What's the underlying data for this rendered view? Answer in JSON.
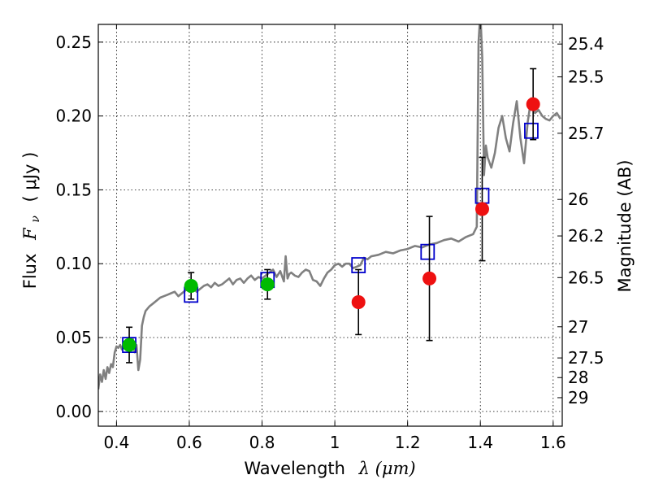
{
  "chart_data": {
    "type": "scatter",
    "xlabel": "Wavelength",
    "xlabel_math": "λ (μm)",
    "ylabel": "Flux",
    "ylabel_math": "F",
    "ylabel_subscript": "ν",
    "ylabel_unit": "( μJy )",
    "y2label": "Magnitude (AB)",
    "xlim": [
      0.35,
      1.625
    ],
    "ylim": [
      -0.01,
      0.262
    ],
    "grid": true,
    "x_ticks": [
      0.4,
      0.6,
      0.8,
      1.0,
      1.2,
      1.4,
      1.6
    ],
    "x_tick_labels": [
      "0.4",
      "0.6",
      "0.8",
      "1",
      "1.2",
      "1.4",
      "1.6"
    ],
    "y_ticks": [
      0.0,
      0.05,
      0.1,
      0.15,
      0.2,
      0.25
    ],
    "y_tick_labels": [
      "0.00",
      "0.05",
      "0.10",
      "0.15",
      "0.20",
      "0.25"
    ],
    "y2_ticks": [
      {
        "label": "25.4",
        "flux": 0.2487
      },
      {
        "label": "25.5",
        "flux": 0.2265
      },
      {
        "label": "25.7",
        "flux": 0.1883
      },
      {
        "label": "26",
        "flux": 0.1435
      },
      {
        "label": "26.2",
        "flux": 0.1188
      },
      {
        "label": "26.5",
        "flux": 0.0906
      },
      {
        "label": "27",
        "flux": 0.0573
      },
      {
        "label": "27.5",
        "flux": 0.0362
      },
      {
        "label": "28",
        "flux": 0.0229
      },
      {
        "label": "29",
        "flux": 0.0093
      }
    ],
    "model_spectrum": {
      "color": "#808080",
      "x": [
        0.35,
        0.355,
        0.36,
        0.365,
        0.37,
        0.375,
        0.38,
        0.385,
        0.39,
        0.395,
        0.4,
        0.405,
        0.41,
        0.415,
        0.42,
        0.425,
        0.43,
        0.435,
        0.44,
        0.445,
        0.45,
        0.455,
        0.46,
        0.465,
        0.47,
        0.475,
        0.48,
        0.49,
        0.5,
        0.51,
        0.52,
        0.53,
        0.54,
        0.55,
        0.56,
        0.57,
        0.58,
        0.59,
        0.6,
        0.61,
        0.62,
        0.63,
        0.64,
        0.65,
        0.66,
        0.67,
        0.68,
        0.69,
        0.7,
        0.71,
        0.72,
        0.73,
        0.74,
        0.75,
        0.76,
        0.77,
        0.78,
        0.79,
        0.8,
        0.81,
        0.82,
        0.83,
        0.84,
        0.85,
        0.86,
        0.865,
        0.87,
        0.875,
        0.88,
        0.89,
        0.9,
        0.91,
        0.92,
        0.93,
        0.94,
        0.95,
        0.96,
        0.97,
        0.98,
        0.99,
        1.0,
        1.01,
        1.02,
        1.03,
        1.04,
        1.05,
        1.06,
        1.07,
        1.08,
        1.09,
        1.1,
        1.12,
        1.14,
        1.16,
        1.18,
        1.2,
        1.22,
        1.24,
        1.26,
        1.28,
        1.3,
        1.32,
        1.34,
        1.36,
        1.37,
        1.38,
        1.39,
        1.395,
        1.4,
        1.405,
        1.41,
        1.415,
        1.42,
        1.43,
        1.44,
        1.45,
        1.46,
        1.47,
        1.48,
        1.49,
        1.5,
        1.51,
        1.52,
        1.53,
        1.54,
        1.55,
        1.56,
        1.57,
        1.58,
        1.59,
        1.6,
        1.61,
        1.62
      ],
      "y": [
        0.015,
        0.025,
        0.02,
        0.028,
        0.022,
        0.03,
        0.026,
        0.032,
        0.03,
        0.04,
        0.044,
        0.043,
        0.045,
        0.042,
        0.046,
        0.044,
        0.043,
        0.048,
        0.045,
        0.049,
        0.04,
        0.045,
        0.028,
        0.035,
        0.058,
        0.064,
        0.068,
        0.071,
        0.073,
        0.075,
        0.077,
        0.078,
        0.079,
        0.08,
        0.081,
        0.078,
        0.08,
        0.082,
        0.083,
        0.084,
        0.081,
        0.083,
        0.085,
        0.086,
        0.084,
        0.087,
        0.085,
        0.086,
        0.088,
        0.09,
        0.086,
        0.089,
        0.09,
        0.087,
        0.09,
        0.092,
        0.089,
        0.091,
        0.09,
        0.092,
        0.094,
        0.096,
        0.091,
        0.095,
        0.088,
        0.105,
        0.09,
        0.093,
        0.094,
        0.092,
        0.091,
        0.094,
        0.096,
        0.095,
        0.089,
        0.088,
        0.085,
        0.09,
        0.094,
        0.096,
        0.099,
        0.1,
        0.098,
        0.1,
        0.1,
        0.097,
        0.098,
        0.099,
        0.104,
        0.103,
        0.105,
        0.106,
        0.108,
        0.107,
        0.109,
        0.11,
        0.112,
        0.111,
        0.113,
        0.114,
        0.116,
        0.117,
        0.115,
        0.118,
        0.119,
        0.12,
        0.125,
        0.25,
        0.27,
        0.24,
        0.16,
        0.18,
        0.172,
        0.165,
        0.175,
        0.192,
        0.2,
        0.185,
        0.176,
        0.195,
        0.21,
        0.185,
        0.168,
        0.196,
        0.212,
        0.202,
        0.204,
        0.2,
        0.198,
        0.197,
        0.2,
        0.202,
        0.198
      ]
    },
    "series": [
      {
        "name": "",
        "marker": "open-square",
        "color": "#0000cc",
        "x": [
          0.435,
          0.605,
          0.815,
          1.065,
          1.255,
          1.405,
          1.54
        ],
        "y": [
          0.045,
          0.079,
          0.089,
          0.099,
          0.108,
          0.146,
          0.19
        ]
      },
      {
        "name": "",
        "marker": "filled-circle",
        "color": "#00bb00",
        "x": [
          0.435,
          0.605,
          0.815
        ],
        "y": [
          0.045,
          0.085,
          0.086
        ],
        "yerr": [
          0.012,
          0.009,
          0.01
        ]
      },
      {
        "name": "",
        "marker": "filled-circle",
        "color": "#ee1111",
        "x": [
          1.065,
          1.26,
          1.405,
          1.545
        ],
        "y": [
          0.074,
          0.09,
          0.137,
          0.208
        ],
        "yerr": [
          0.022,
          0.042,
          0.035,
          0.024
        ]
      }
    ]
  }
}
